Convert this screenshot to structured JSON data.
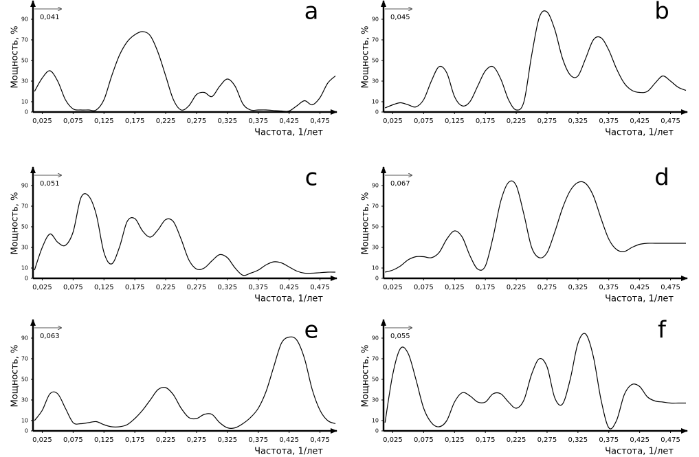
{
  "chart_data": [
    {
      "type": "line",
      "panel": "a",
      "annotation": "0,041",
      "xlabel": "Частота, 1/лет",
      "ylabel": "Мощность, %",
      "color": "#000000",
      "xlim": [
        0.01,
        0.5
      ],
      "ylim": [
        0,
        100
      ],
      "xticks": [
        {
          "value": 0.025,
          "label": "0,025"
        },
        {
          "value": 0.075,
          "label": "0,075"
        },
        {
          "value": 0.125,
          "label": "0,125"
        },
        {
          "value": 0.175,
          "label": "0,175"
        },
        {
          "value": 0.225,
          "label": "0,225"
        },
        {
          "value": 0.275,
          "label": "0,275"
        },
        {
          "value": 0.325,
          "label": "0,325"
        },
        {
          "value": 0.375,
          "label": "0,375"
        },
        {
          "value": 0.425,
          "label": "0,425"
        },
        {
          "value": 0.475,
          "label": "0,475"
        }
      ],
      "yticks": [
        0,
        10,
        30,
        50,
        70,
        90
      ],
      "x": [
        0.0125,
        0.025,
        0.0375,
        0.05,
        0.0625,
        0.075,
        0.0875,
        0.1,
        0.1125,
        0.125,
        0.1375,
        0.15,
        0.1625,
        0.175,
        0.1875,
        0.2,
        0.2125,
        0.225,
        0.2375,
        0.25,
        0.2625,
        0.275,
        0.2875,
        0.3,
        0.3125,
        0.325,
        0.3375,
        0.35,
        0.3625,
        0.375,
        0.3875,
        0.4,
        0.4125,
        0.425,
        0.4375,
        0.45,
        0.4625,
        0.475,
        0.4875,
        0.5
      ],
      "values": [
        20,
        33,
        40,
        30,
        12,
        3,
        2,
        2,
        2,
        12,
        35,
        55,
        68,
        75,
        78,
        74,
        58,
        35,
        12,
        2,
        6,
        17,
        19,
        15,
        25,
        32,
        25,
        8,
        2,
        2,
        2,
        1.5,
        1,
        1,
        6,
        11,
        7,
        14,
        28,
        35
      ]
    },
    {
      "type": "line",
      "panel": "b",
      "annotation": "0,045",
      "xlabel": "Частота, 1/лет",
      "ylabel": "Мощность, %",
      "color": "#000000",
      "xlim": [
        0.01,
        0.5
      ],
      "ylim": [
        0,
        100
      ],
      "xticks": [
        {
          "value": 0.025,
          "label": "0,025"
        },
        {
          "value": 0.075,
          "label": "0,075"
        },
        {
          "value": 0.125,
          "label": "0,125"
        },
        {
          "value": 0.175,
          "label": "0,175"
        },
        {
          "value": 0.225,
          "label": "0,225"
        },
        {
          "value": 0.275,
          "label": "0,275"
        },
        {
          "value": 0.325,
          "label": "0,325"
        },
        {
          "value": 0.375,
          "label": "0,375"
        },
        {
          "value": 0.425,
          "label": "0,425"
        },
        {
          "value": 0.475,
          "label": "0,475"
        }
      ],
      "yticks": [
        0,
        10,
        30,
        50,
        70,
        90
      ],
      "x": [
        0.0125,
        0.025,
        0.0375,
        0.05,
        0.0625,
        0.075,
        0.0875,
        0.1,
        0.1125,
        0.125,
        0.1375,
        0.15,
        0.1625,
        0.175,
        0.1875,
        0.2,
        0.2125,
        0.225,
        0.2375,
        0.25,
        0.2625,
        0.275,
        0.2875,
        0.3,
        0.3125,
        0.325,
        0.3375,
        0.35,
        0.3625,
        0.375,
        0.3875,
        0.4,
        0.4125,
        0.425,
        0.4375,
        0.45,
        0.4625,
        0.475,
        0.4875,
        0.5
      ],
      "values": [
        4,
        7,
        9,
        7,
        5,
        12,
        30,
        44,
        38,
        15,
        6,
        10,
        25,
        40,
        44,
        32,
        12,
        2,
        10,
        55,
        92,
        97,
        80,
        52,
        36,
        35,
        52,
        70,
        72,
        60,
        42,
        28,
        21,
        19,
        20,
        28,
        35,
        30,
        24,
        21
      ]
    },
    {
      "type": "line",
      "panel": "c",
      "annotation": "0,051",
      "xlabel": "Частота, 1/лет",
      "ylabel": "Мощность, %",
      "color": "#000000",
      "xlim": [
        0.01,
        0.5
      ],
      "ylim": [
        0,
        100
      ],
      "xticks": [
        {
          "value": 0.025,
          "label": "0,025"
        },
        {
          "value": 0.075,
          "label": "0,075"
        },
        {
          "value": 0.125,
          "label": "0,125"
        },
        {
          "value": 0.175,
          "label": "0,175"
        },
        {
          "value": 0.225,
          "label": "0,225"
        },
        {
          "value": 0.275,
          "label": "0,275"
        },
        {
          "value": 0.325,
          "label": "0,325"
        },
        {
          "value": 0.375,
          "label": "0,375"
        },
        {
          "value": 0.425,
          "label": "0,425"
        },
        {
          "value": 0.475,
          "label": "0,475"
        }
      ],
      "yticks": [
        0,
        10,
        30,
        50,
        70,
        90
      ],
      "x": [
        0.0125,
        0.025,
        0.0375,
        0.05,
        0.0625,
        0.075,
        0.0875,
        0.1,
        0.1125,
        0.125,
        0.1375,
        0.15,
        0.1625,
        0.175,
        0.1875,
        0.2,
        0.2125,
        0.225,
        0.2375,
        0.25,
        0.2625,
        0.275,
        0.2875,
        0.3,
        0.3125,
        0.325,
        0.3375,
        0.35,
        0.3625,
        0.375,
        0.3875,
        0.4,
        0.4125,
        0.425,
        0.4375,
        0.45,
        0.4625,
        0.475,
        0.4875,
        0.5
      ],
      "values": [
        8,
        30,
        43,
        35,
        32,
        45,
        78,
        80,
        62,
        25,
        14,
        30,
        55,
        58,
        46,
        40,
        47,
        57,
        55,
        38,
        18,
        9,
        10,
        17,
        23,
        20,
        10,
        3,
        5,
        8,
        13,
        16,
        15,
        11,
        7,
        5,
        5,
        5.5,
        6,
        6
      ]
    },
    {
      "type": "line",
      "panel": "d",
      "annotation": "0,067",
      "xlabel": "Частота, 1/лет",
      "ylabel": "Мощность, %",
      "color": "#000000",
      "xlim": [
        0.01,
        0.5
      ],
      "ylim": [
        0,
        100
      ],
      "xticks": [
        {
          "value": 0.025,
          "label": "0,025"
        },
        {
          "value": 0.075,
          "label": "0,075"
        },
        {
          "value": 0.125,
          "label": "0,125"
        },
        {
          "value": 0.175,
          "label": "0,175"
        },
        {
          "value": 0.225,
          "label": "0,225"
        },
        {
          "value": 0.275,
          "label": "0,275"
        },
        {
          "value": 0.325,
          "label": "0,325"
        },
        {
          "value": 0.375,
          "label": "0,375"
        },
        {
          "value": 0.425,
          "label": "0,425"
        },
        {
          "value": 0.475,
          "label": "0,475"
        }
      ],
      "yticks": [
        0,
        10,
        30,
        50,
        70,
        90
      ],
      "x": [
        0.0125,
        0.025,
        0.0375,
        0.05,
        0.0625,
        0.075,
        0.0875,
        0.1,
        0.1125,
        0.125,
        0.1375,
        0.15,
        0.1625,
        0.175,
        0.1875,
        0.2,
        0.2125,
        0.225,
        0.2375,
        0.25,
        0.2625,
        0.275,
        0.2875,
        0.3,
        0.3125,
        0.325,
        0.3375,
        0.35,
        0.3625,
        0.375,
        0.3875,
        0.4,
        0.4125,
        0.425,
        0.4375,
        0.45,
        0.4625,
        0.475,
        0.4875,
        0.5
      ],
      "values": [
        6,
        8,
        12,
        18,
        21,
        21,
        20,
        25,
        38,
        46,
        40,
        22,
        9,
        12,
        40,
        75,
        93,
        90,
        62,
        30,
        20,
        25,
        45,
        68,
        85,
        93,
        92,
        80,
        58,
        38,
        28,
        26,
        30,
        33,
        34,
        34,
        34,
        34,
        34,
        34
      ]
    },
    {
      "type": "line",
      "panel": "e",
      "annotation": "0,063",
      "xlabel": "Частота, 1/лет",
      "ylabel": "Мощность, %",
      "color": "#000000",
      "xlim": [
        0.01,
        0.5
      ],
      "ylim": [
        0,
        100
      ],
      "xticks": [
        {
          "value": 0.025,
          "label": "0,025"
        },
        {
          "value": 0.075,
          "label": "0,075"
        },
        {
          "value": 0.125,
          "label": "0,125"
        },
        {
          "value": 0.175,
          "label": "0,175"
        },
        {
          "value": 0.225,
          "label": "0,225"
        },
        {
          "value": 0.275,
          "label": "0,275"
        },
        {
          "value": 0.325,
          "label": "0,325"
        },
        {
          "value": 0.375,
          "label": "0,375"
        },
        {
          "value": 0.425,
          "label": "0,425"
        },
        {
          "value": 0.475,
          "label": "0,475"
        }
      ],
      "yticks": [
        0,
        10,
        30,
        50,
        70,
        90
      ],
      "x": [
        0.0125,
        0.025,
        0.0375,
        0.05,
        0.0625,
        0.075,
        0.0875,
        0.1,
        0.1125,
        0.125,
        0.1375,
        0.15,
        0.1625,
        0.175,
        0.1875,
        0.2,
        0.2125,
        0.225,
        0.2375,
        0.25,
        0.2625,
        0.275,
        0.2875,
        0.3,
        0.3125,
        0.325,
        0.3375,
        0.35,
        0.3625,
        0.375,
        0.3875,
        0.4,
        0.4125,
        0.425,
        0.4375,
        0.45,
        0.4625,
        0.475,
        0.4875,
        0.5
      ],
      "values": [
        10,
        20,
        36,
        36,
        22,
        8,
        7,
        8,
        9,
        6,
        4,
        4,
        6,
        12,
        20,
        30,
        40,
        42,
        35,
        22,
        13,
        12,
        16,
        16,
        8,
        3,
        3,
        7,
        13,
        22,
        38,
        62,
        85,
        91,
        88,
        70,
        40,
        20,
        10,
        7
      ]
    },
    {
      "type": "line",
      "panel": "f",
      "annotation": "0,055",
      "xlabel": "Частота, 1/лет",
      "ylabel": "Мощность, %",
      "color": "#000000",
      "xlim": [
        0.01,
        0.5
      ],
      "ylim": [
        0,
        100
      ],
      "xticks": [
        {
          "value": 0.025,
          "label": "0,025"
        },
        {
          "value": 0.075,
          "label": "0,075"
        },
        {
          "value": 0.125,
          "label": "0,125"
        },
        {
          "value": 0.175,
          "label": "0,175"
        },
        {
          "value": 0.225,
          "label": "0,225"
        },
        {
          "value": 0.275,
          "label": "0,275"
        },
        {
          "value": 0.325,
          "label": "0,325"
        },
        {
          "value": 0.375,
          "label": "0,375"
        },
        {
          "value": 0.425,
          "label": "0,425"
        },
        {
          "value": 0.475,
          "label": "0,475"
        }
      ],
      "yticks": [
        0,
        10,
        30,
        50,
        70,
        90
      ],
      "x": [
        0.0125,
        0.025,
        0.0375,
        0.05,
        0.0625,
        0.075,
        0.0875,
        0.1,
        0.1125,
        0.125,
        0.1375,
        0.15,
        0.1625,
        0.175,
        0.1875,
        0.2,
        0.2125,
        0.225,
        0.2375,
        0.25,
        0.2625,
        0.275,
        0.2875,
        0.3,
        0.3125,
        0.325,
        0.3375,
        0.35,
        0.3625,
        0.375,
        0.3875,
        0.4,
        0.4125,
        0.425,
        0.4375,
        0.45,
        0.4625,
        0.475,
        0.4875,
        0.5
      ],
      "values": [
        8,
        55,
        80,
        75,
        50,
        22,
        8,
        4,
        10,
        28,
        37,
        34,
        28,
        28,
        36,
        36,
        28,
        22,
        30,
        55,
        70,
        62,
        32,
        26,
        50,
        85,
        94,
        72,
        30,
        3,
        10,
        35,
        45,
        43,
        33,
        29,
        28,
        27,
        27,
        27
      ]
    }
  ]
}
